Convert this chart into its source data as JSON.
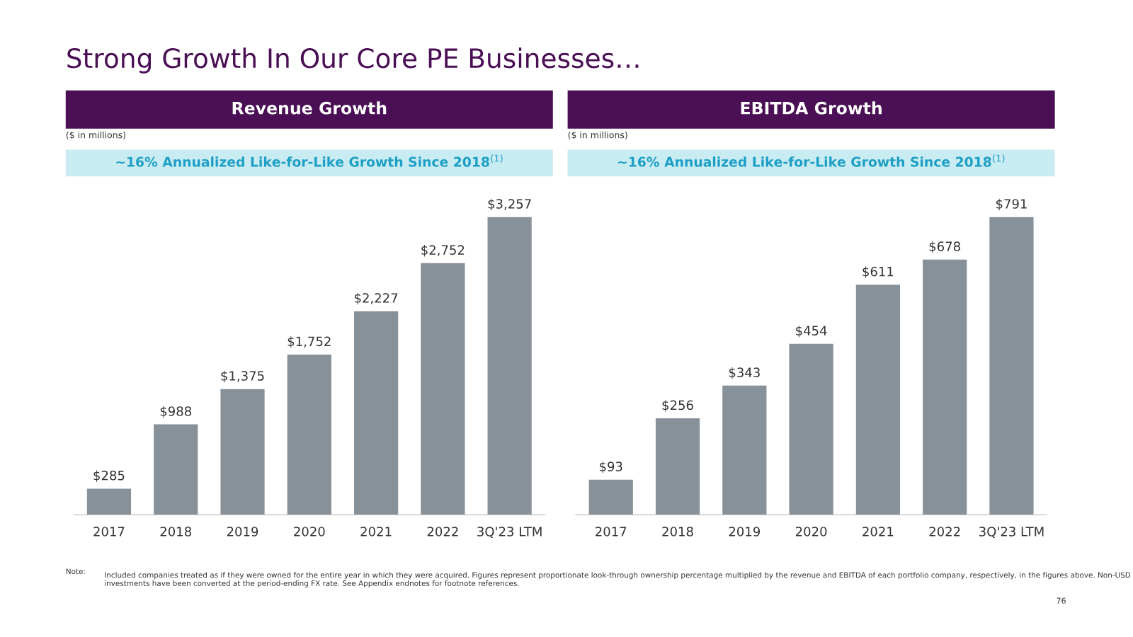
{
  "chart_data": [
    {
      "type": "bar",
      "title": "Revenue Growth",
      "subtitle": "~16% Annualized Like-for-Like Growth Since 2018$^{(1)}$",
      "relative": false,
      "categories": [
        "2017",
        "2018",
        "2019",
        "2020",
        "2021",
        "2022",
        "3Q'23 LTM"
      ],
      "values": [
        285,
        988,
        1375,
        1752,
        2227,
        2752,
        3257
      ],
      "value_labels": [
        "$285",
        "$988",
        "$1,375",
        "$1,752",
        "$2,227",
        "$2,752",
        "$3,257"
      ],
      "color": "#87919a",
      "grid": false,
      "legend": false,
      "annotations": [
        "Strong Growth In Our Core PE Businesses…",
        "($ in millions)",
        "Note:",
        "Included companies treated as if they were owned for the entire year in which they were acquired. Figures represent proportionate look-through ownership percentage multiplied by the revenue and EBITDA of each portfolio company, respectively, in the figures above. Non-USD investments have been converted at the period-ending FX rate. See Appendix endnotes for footnote references."
      ]
    },
    {
      "type": "bar",
      "title": "EBITDA Growth",
      "subtitle": "~16% Annualized Like-for-Like Growth Since 2018$^{(1)}$",
      "relative": false,
      "categories": [
        "2017",
        "2018",
        "2019",
        "2020",
        "2021",
        "2022",
        "3Q'23 LTM"
      ],
      "values": [
        93,
        256,
        343,
        454,
        611,
        678,
        791
      ],
      "value_labels": [
        "$93",
        "$256",
        "$343",
        "$454",
        "$611",
        "$678",
        "$791"
      ],
      "color": "#87919a",
      "grid": false,
      "legend": false,
      "annotations": [
        "($ in millions)",
        "76"
      ]
    }
  ]
}
